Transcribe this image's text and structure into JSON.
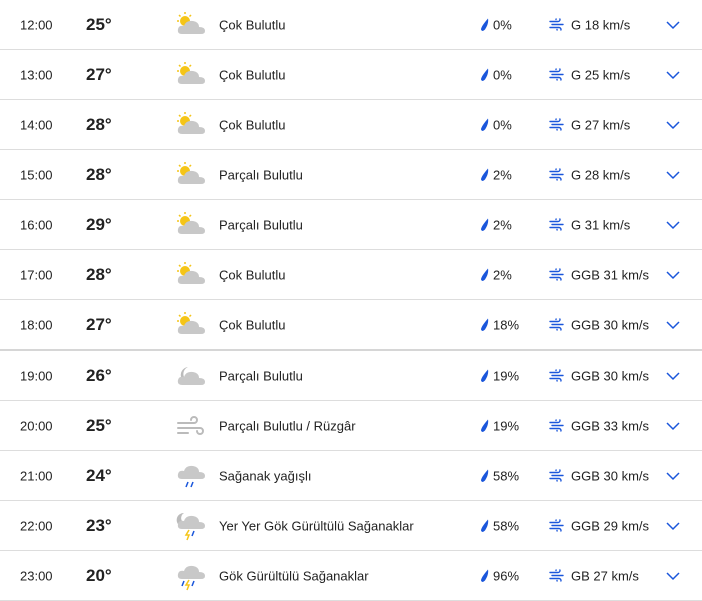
{
  "colors": {
    "accent": "#1a56db",
    "sun": "#f5c518",
    "cloud": "#c8c8c8"
  },
  "rows": [
    {
      "time": "12:00",
      "temp": "25°",
      "icon": "partly-sunny-icon",
      "cond": "Çok Bulutlu",
      "rain": "0%",
      "wind": "G 18 km/s"
    },
    {
      "time": "13:00",
      "temp": "27°",
      "icon": "partly-sunny-icon",
      "cond": "Çok Bulutlu",
      "rain": "0%",
      "wind": "G 25 km/s"
    },
    {
      "time": "14:00",
      "temp": "28°",
      "icon": "partly-sunny-icon",
      "cond": "Çok Bulutlu",
      "rain": "0%",
      "wind": "G 27 km/s"
    },
    {
      "time": "15:00",
      "temp": "28°",
      "icon": "partly-sunny-icon",
      "cond": "Parçalı Bulutlu",
      "rain": "2%",
      "wind": "G 28 km/s"
    },
    {
      "time": "16:00",
      "temp": "29°",
      "icon": "partly-sunny-icon",
      "cond": "Parçalı Bulutlu",
      "rain": "2%",
      "wind": "G 31 km/s"
    },
    {
      "time": "17:00",
      "temp": "28°",
      "icon": "partly-sunny-icon",
      "cond": "Çok Bulutlu",
      "rain": "2%",
      "wind": "GGB 31 km/s"
    },
    {
      "time": "18:00",
      "temp": "27°",
      "icon": "partly-sunny-icon",
      "cond": "Çok Bulutlu",
      "rain": "18%",
      "wind": "GGB 30 km/s"
    },
    {
      "time": "19:00",
      "temp": "26°",
      "icon": "moon-cloud-icon",
      "cond": "Parçalı Bulutlu",
      "rain": "19%",
      "wind": "GGB 30 km/s"
    },
    {
      "time": "20:00",
      "temp": "25°",
      "icon": "wind-icon",
      "cond": "Parçalı Bulutlu / Rüzgâr",
      "rain": "19%",
      "wind": "GGB 33 km/s"
    },
    {
      "time": "21:00",
      "temp": "24°",
      "icon": "rain-cloud-icon",
      "cond": "Sağanak yağışlı",
      "rain": "58%",
      "wind": "GGB 30 km/s"
    },
    {
      "time": "22:00",
      "temp": "23°",
      "icon": "moon-thunderstorm-icon",
      "cond": "Yer Yer Gök Gürültülü Sağanaklar",
      "rain": "58%",
      "wind": "GGB 29 km/s"
    },
    {
      "time": "23:00",
      "temp": "20°",
      "icon": "thunderstorm-icon",
      "cond": "Gök Gürültülü Sağanaklar",
      "rain": "96%",
      "wind": "GB 27 km/s"
    }
  ]
}
